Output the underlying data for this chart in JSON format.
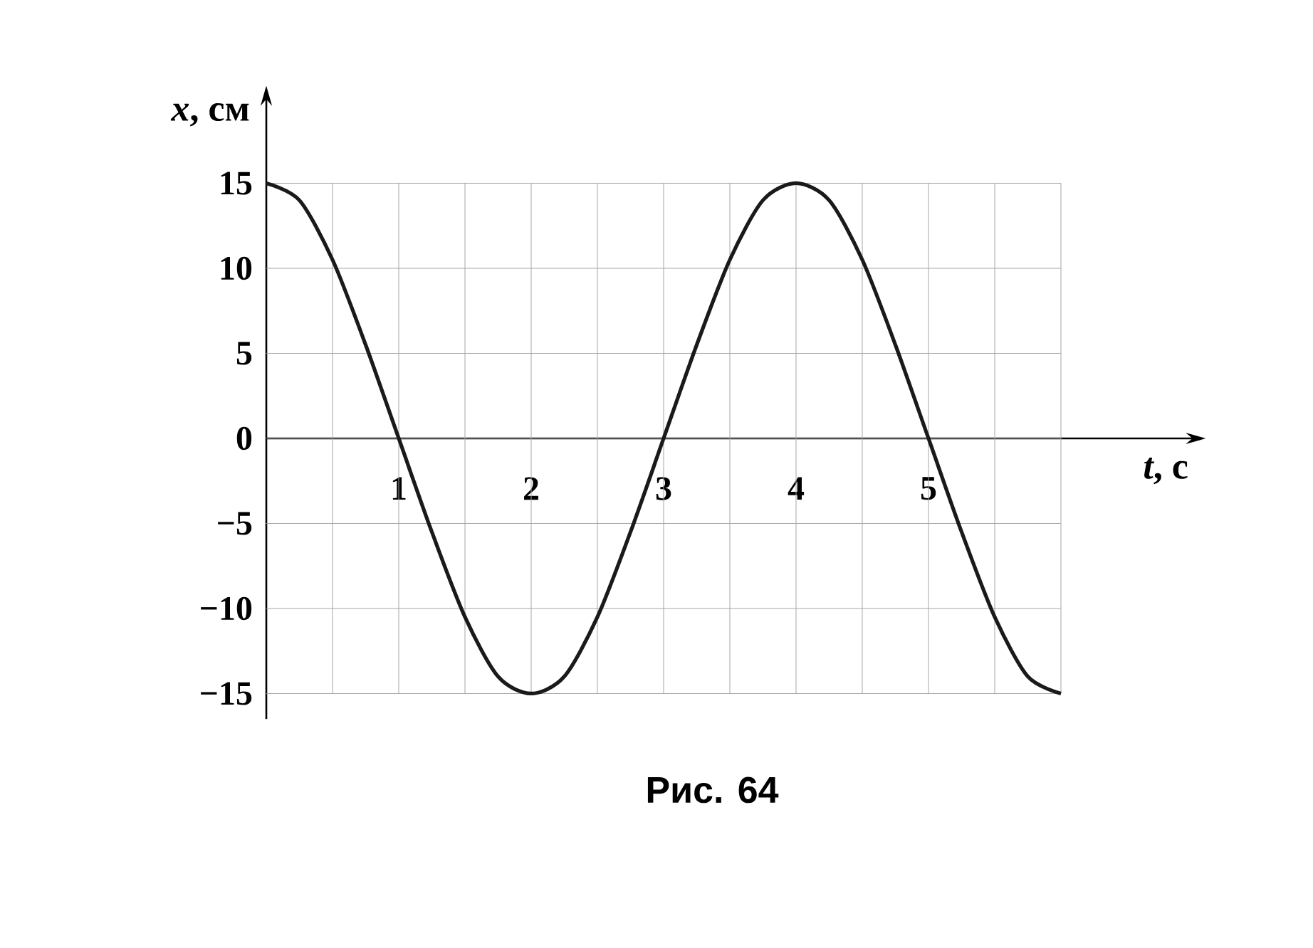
{
  "chart_data": {
    "type": "line",
    "xlabel": "*t*, с",
    "ylabel": "*x*, см",
    "x": [
      0,
      0.25,
      0.5,
      0.75,
      1,
      1.25,
      1.5,
      1.75,
      2,
      2.25,
      2.5,
      2.75,
      3,
      3.25,
      3.5,
      3.75,
      4,
      4.25,
      4.5,
      4.75,
      5,
      5.25,
      5.5,
      5.75,
      6
    ],
    "series": [
      {
        "color": "#1a1a1a",
        "values": [
          15,
          14,
          10.5,
          5.5,
          0,
          -5.5,
          -10.5,
          -14,
          -15,
          -14,
          -10.5,
          -5.5,
          0,
          5.5,
          10.5,
          14,
          15,
          14,
          10.5,
          5.5,
          0,
          -5.5,
          -10.5,
          -14,
          -15
        ]
      }
    ],
    "xlim": [
      0,
      7
    ],
    "ylim": [
      -16.5,
      20
    ],
    "xticks": [
      {
        "value": 0.5,
        "label": null
      },
      1,
      {
        "value": 1.5,
        "label": null
      },
      2,
      {
        "value": 2.5,
        "label": null
      },
      3,
      {
        "value": 3.5,
        "label": null
      },
      4,
      {
        "value": 4.5,
        "label": null
      },
      5,
      {
        "value": 5.5,
        "label": null
      },
      {
        "value": 6,
        "label": null
      }
    ],
    "yticks": [
      {
        "value": -15,
        "label": "−15"
      },
      {
        "value": -10,
        "label": "−10"
      },
      {
        "value": -5,
        "label": "−5"
      },
      0,
      5,
      10,
      15
    ],
    "grid": true,
    "marker": "none",
    "line_style": "solid",
    "annotations": [
      "**Рис. 64**"
    ]
  }
}
